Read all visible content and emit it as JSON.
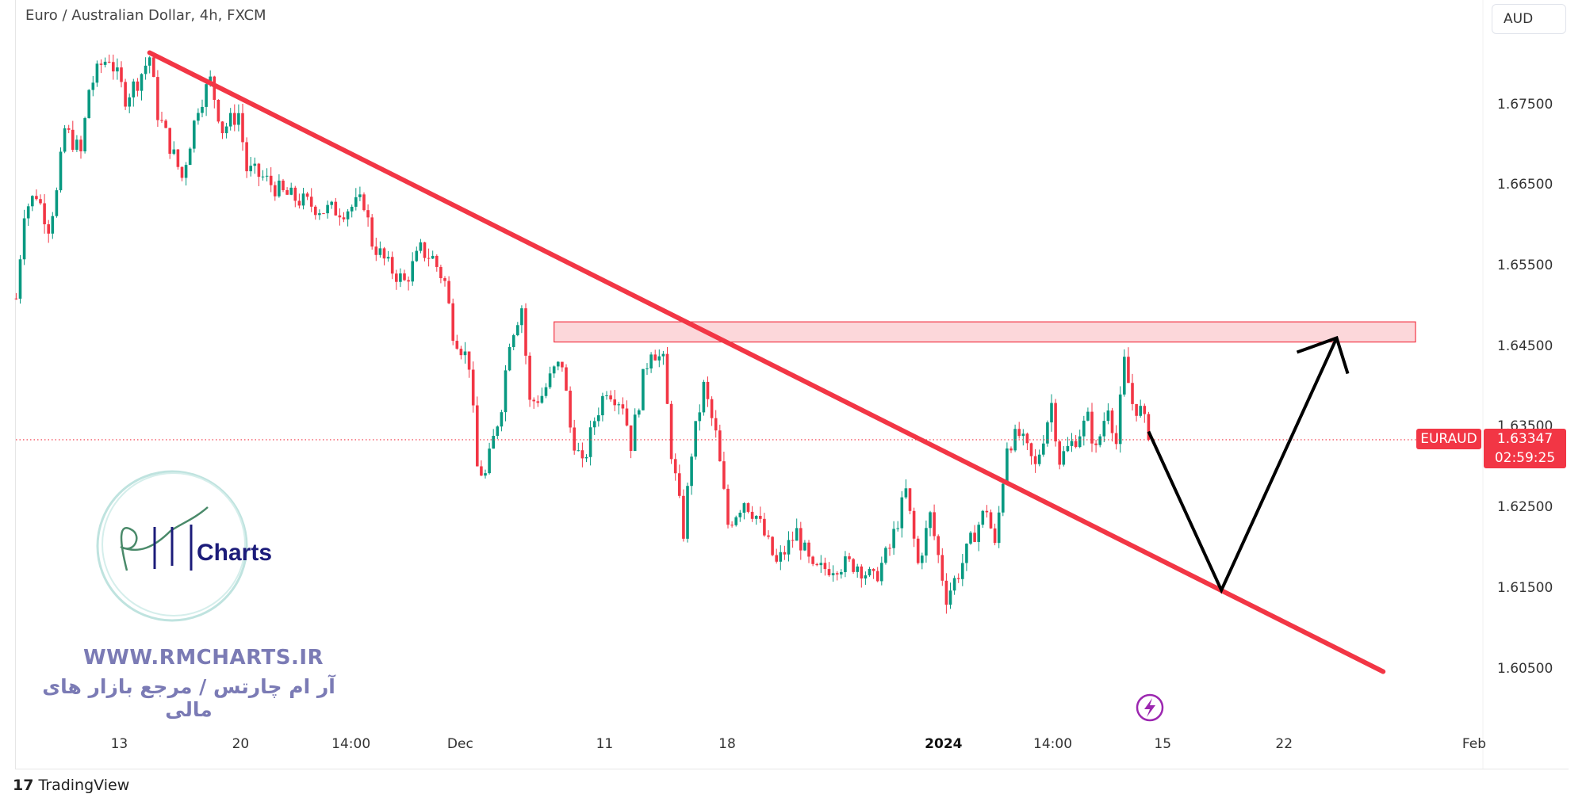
{
  "header": {
    "title": "Euro / Australian Dollar, 4h, FXCM",
    "currency_button": "AUD"
  },
  "colors": {
    "up": "#089981",
    "down": "#f23645",
    "trendline": "#f23645",
    "zone_fill": "rgba(242,54,69,0.2)",
    "arrow": "#000000",
    "badge": "#f23645",
    "lightning": "#9c27b0"
  },
  "price_badge": {
    "symbol": "EURAUD",
    "price": "1.63347",
    "countdown": "02:59:25"
  },
  "watermark": {
    "logo_text": "Charts",
    "website": "WWW.RMCHARTS.IR",
    "tagline": "آر ام چارتس / مرجع بازار های مالی"
  },
  "footer": {
    "brand": "TradingView"
  },
  "chart_data": {
    "type": "candlestick",
    "title": "Euro / Australian Dollar, 4h, FXCM",
    "ylim": [
      1.5985,
      1.6883
    ],
    "y_ticks": [
      "1.67500",
      "1.66500",
      "1.65500",
      "1.64500",
      "1.63500",
      "1.62500",
      "1.61500",
      "1.60500"
    ],
    "y_tick_values": [
      1.675,
      1.665,
      1.655,
      1.645,
      1.635,
      1.625,
      1.615,
      1.605
    ],
    "x_ticks": [
      {
        "label": "13",
        "t": 29.5
      },
      {
        "label": "20",
        "t": 59.5
      },
      {
        "label": "14:00",
        "t": 86.8
      },
      {
        "label": "Dec",
        "t": 113.8
      },
      {
        "label": "11",
        "t": 149.5
      },
      {
        "label": "18",
        "t": 179.8
      },
      {
        "label": "2024",
        "t": 233.3,
        "bold": true
      },
      {
        "label": "14:00",
        "t": 260.3
      },
      {
        "label": "15",
        "t": 287.5
      },
      {
        "label": "22",
        "t": 317.5
      },
      {
        "label": "Feb",
        "t": 364.5
      }
    ],
    "x_range": [
      0,
      370
    ],
    "close_path": [
      [
        4,
        1.651
      ],
      [
        6,
        1.662
      ],
      [
        9,
        1.664
      ],
      [
        12,
        1.66
      ],
      [
        14,
        1.664
      ],
      [
        16,
        1.672
      ],
      [
        20,
        1.669
      ],
      [
        22,
        1.677
      ],
      [
        25,
        1.68
      ],
      [
        27,
        1.681
      ],
      [
        31,
        1.676
      ],
      [
        34,
        1.678
      ],
      [
        37,
        1.681
      ],
      [
        39,
        1.674
      ],
      [
        42,
        1.67
      ],
      [
        45,
        1.666
      ],
      [
        49,
        1.675
      ],
      [
        52,
        1.678
      ],
      [
        55,
        1.672
      ],
      [
        59,
        1.674
      ],
      [
        61,
        1.667
      ],
      [
        65,
        1.666
      ],
      [
        70,
        1.664
      ],
      [
        75,
        1.663
      ],
      [
        80,
        1.662
      ],
      [
        85,
        1.662
      ],
      [
        90,
        1.663
      ],
      [
        92,
        1.658
      ],
      [
        96,
        1.655
      ],
      [
        100,
        1.653
      ],
      [
        104,
        1.657
      ],
      [
        107,
        1.656
      ],
      [
        110,
        1.653
      ],
      [
        112,
        1.647
      ],
      [
        116,
        1.643
      ],
      [
        118,
        1.63
      ],
      [
        120,
        1.629
      ],
      [
        124,
        1.638
      ],
      [
        126,
        1.646
      ],
      [
        129,
        1.65
      ],
      [
        131,
        1.638
      ],
      [
        134,
        1.639
      ],
      [
        137,
        1.642
      ],
      [
        139,
        1.643
      ],
      [
        141,
        1.635
      ],
      [
        144,
        1.63
      ],
      [
        147,
        1.636
      ],
      [
        150,
        1.64
      ],
      [
        154,
        1.638
      ],
      [
        156,
        1.633
      ],
      [
        159,
        1.641
      ],
      [
        161,
        1.645
      ],
      [
        164,
        1.643
      ],
      [
        166,
        1.632
      ],
      [
        169,
        1.622
      ],
      [
        171,
        1.632
      ],
      [
        174,
        1.64
      ],
      [
        177,
        1.634
      ],
      [
        180,
        1.623
      ],
      [
        184,
        1.626
      ],
      [
        187,
        1.624
      ],
      [
        192,
        1.618
      ],
      [
        197,
        1.622
      ],
      [
        201,
        1.617
      ],
      [
        207,
        1.618
      ],
      [
        212,
        1.618
      ],
      [
        216,
        1.616
      ],
      [
        220,
        1.62
      ],
      [
        224,
        1.627
      ],
      [
        227,
        1.618
      ],
      [
        230,
        1.624
      ],
      [
        234,
        1.614
      ],
      [
        237,
        1.617
      ],
      [
        241,
        1.622
      ],
      [
        244,
        1.625
      ],
      [
        246,
        1.62
      ],
      [
        249,
        1.633
      ],
      [
        252,
        1.634
      ],
      [
        256,
        1.63
      ],
      [
        260,
        1.638
      ],
      [
        262,
        1.631
      ],
      [
        265,
        1.633
      ],
      [
        269,
        1.636
      ],
      [
        271,
        1.632
      ],
      [
        274,
        1.638
      ],
      [
        276,
        1.633
      ],
      [
        278,
        1.643
      ],
      [
        280,
        1.638
      ],
      [
        282,
        1.637
      ],
      [
        284,
        1.634
      ]
    ],
    "current_price": 1.63347,
    "drawings": {
      "trendline": [
        [
          37,
          1.6815
        ],
        [
          342,
          1.6047
        ]
      ],
      "resistance_zone": {
        "t": [
          137,
          350
        ],
        "price": [
          1.6456,
          1.6481
        ]
      },
      "projection_path": [
        [
          284,
          1.6345
        ],
        [
          302,
          1.6148
        ],
        [
          330.5,
          1.6461
        ]
      ]
    }
  }
}
